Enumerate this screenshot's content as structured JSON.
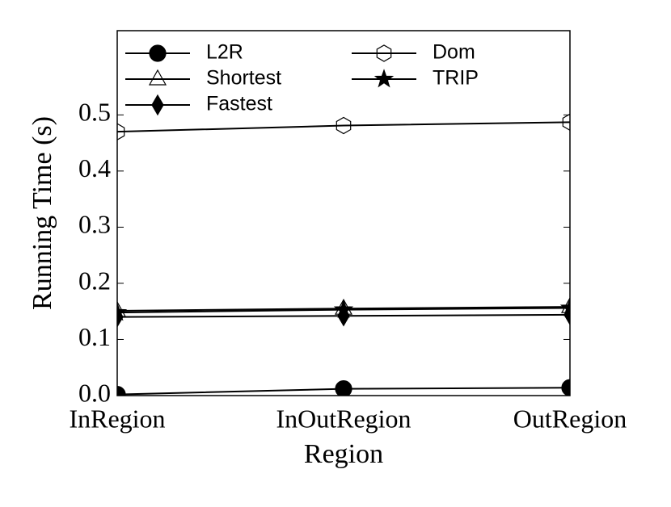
{
  "chart_data": {
    "type": "line",
    "x_label": "Region",
    "y_label": "Running Time (s)",
    "categories": [
      "InRegion",
      "InOutRegion",
      "OutRegion"
    ],
    "series": [
      {
        "name": "L2R",
        "color": "#000000",
        "marker": "circle",
        "values": [
          0.002,
          0.012,
          0.014
        ]
      },
      {
        "name": "Shortest",
        "color": "#000000",
        "marker": "triangle",
        "values": [
          0.151,
          0.155,
          0.158
        ]
      },
      {
        "name": "Fastest",
        "color": "#000000",
        "marker": "diamond",
        "values": [
          0.14,
          0.142,
          0.144
        ]
      },
      {
        "name": "Dom",
        "color": "#000000",
        "marker": "hexagon",
        "values": [
          0.47,
          0.481,
          0.487
        ]
      },
      {
        "name": "TRIP",
        "color": "#000000",
        "marker": "star",
        "values": [
          0.148,
          0.153,
          0.156
        ]
      }
    ],
    "ylim": [
      0,
      0.65
    ],
    "yticks": [
      {
        "value": 0,
        "label": "0.0"
      },
      0.1,
      0.2,
      0.3,
      0.4,
      0.5
    ],
    "legend": "upper left"
  }
}
